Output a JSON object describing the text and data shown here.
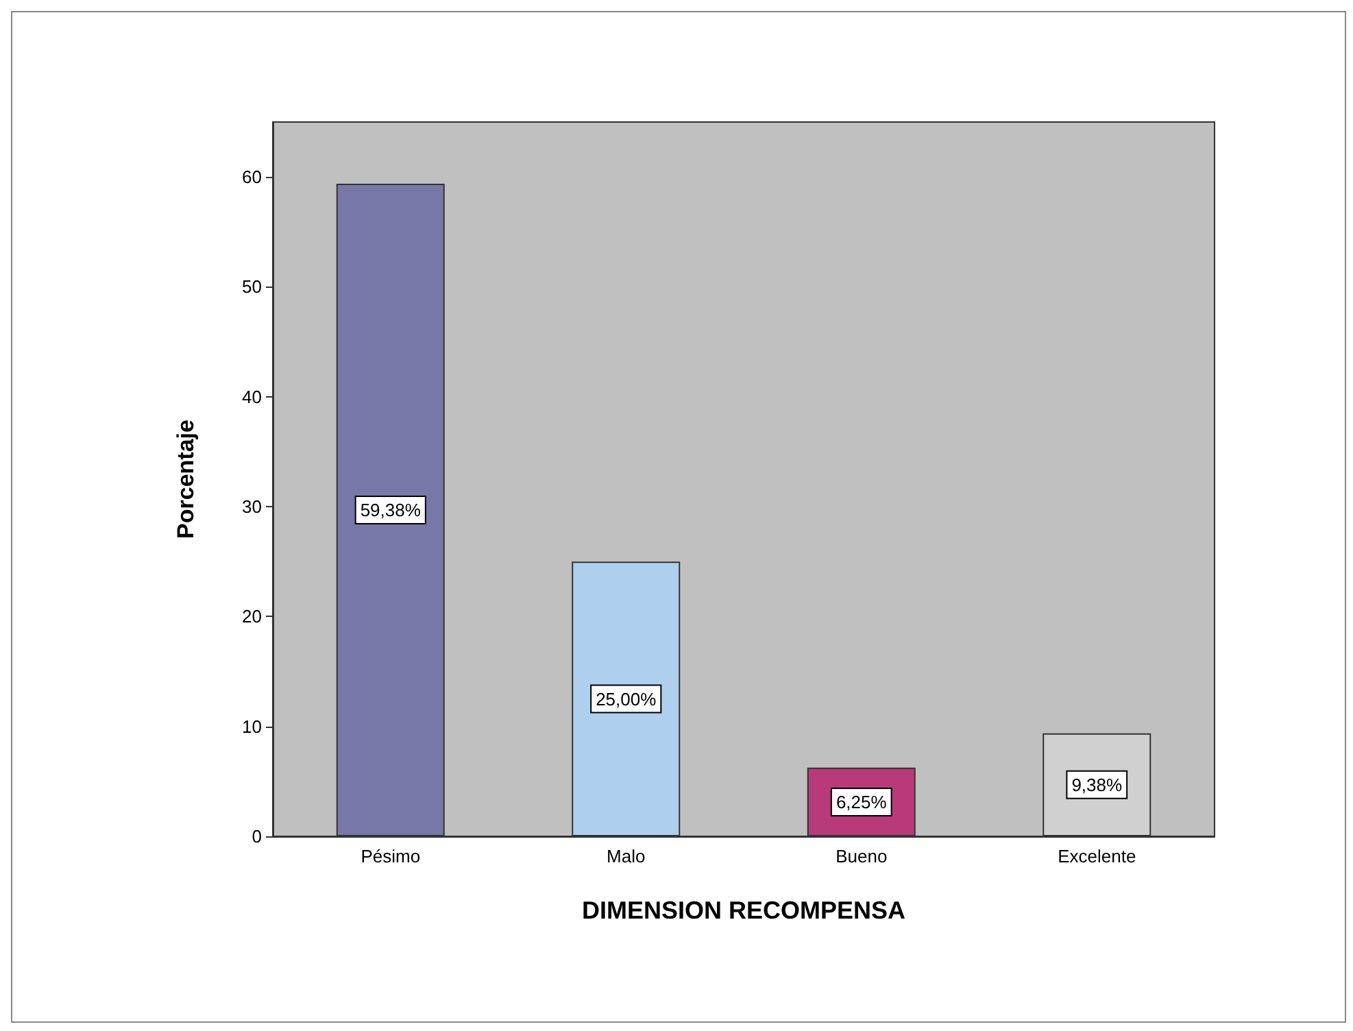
{
  "chart_data": {
    "type": "bar",
    "xlabel": "DIMENSION RECOMPENSA",
    "ylabel": "Porcentaje",
    "categories": [
      "Pésimo",
      "Malo",
      "Bueno",
      "Excelente"
    ],
    "values": [
      59.38,
      25.0,
      6.25,
      9.38
    ],
    "colors": [
      "#7878a8",
      "#aed0ee",
      "#b83a7a",
      "#d0d0d0"
    ],
    "value_labels": [
      "59,38%",
      "25,00%",
      "6,25%",
      "9,38%"
    ],
    "ylim": [
      0,
      65
    ],
    "yticks": [
      0,
      10,
      20,
      30,
      40,
      50,
      60
    ],
    "grid": false
  }
}
